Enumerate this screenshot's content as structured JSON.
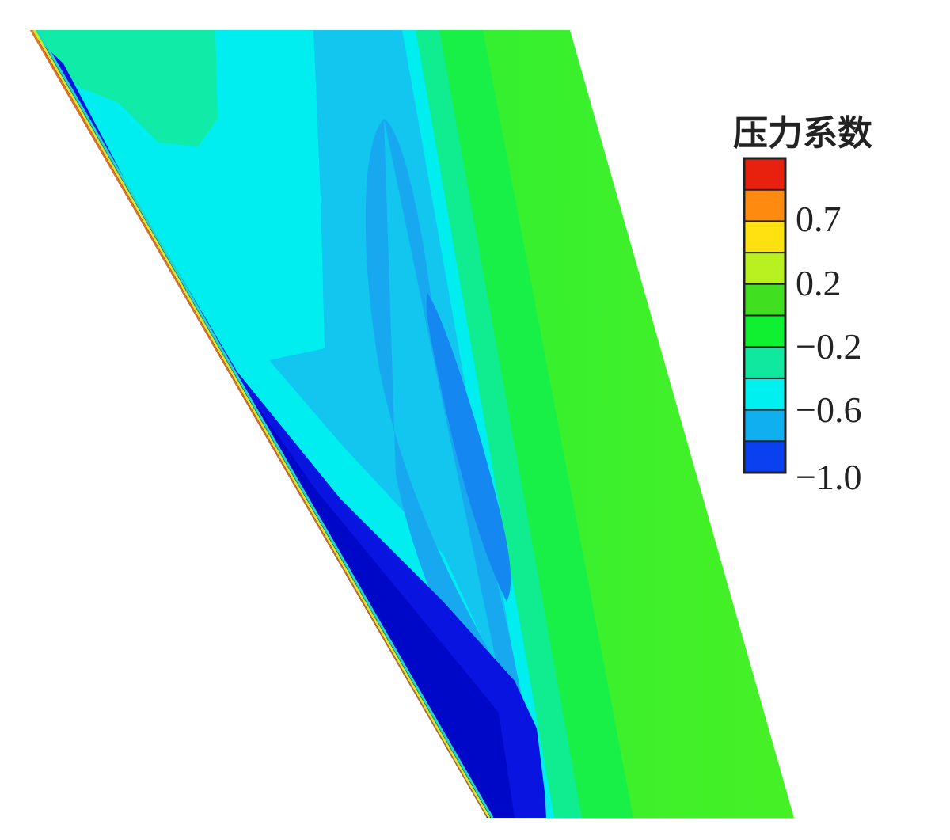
{
  "chart_data": {
    "type": "heatmap",
    "subtype": "filled contour plot of wing surface",
    "legend": {
      "title": "压力系数",
      "placement": "right",
      "ticks": [
        "0.7",
        "0.2",
        "−0.2",
        "−0.6",
        "−1.0"
      ],
      "colors": [
        "#e8200e",
        "#ff8a10",
        "#ffe010",
        "#b8f020",
        "#40e020",
        "#10f030",
        "#10e8a0",
        "#00f0f0",
        "#10b0f0",
        "#0a40f0"
      ]
    },
    "value_range": [
      -1.0,
      1.0
    ],
    "colors": {
      "leading_edge": "#ff6a10",
      "dark_blue": "#0a14e0",
      "blue": "#1480f0",
      "medium_blue": "#18a8f0",
      "light_blue": "#10c8f0",
      "cyan": "#00eef0",
      "teal_green": "#10eca0",
      "green": "#18f050",
      "bright_green": "#40f020"
    }
  }
}
